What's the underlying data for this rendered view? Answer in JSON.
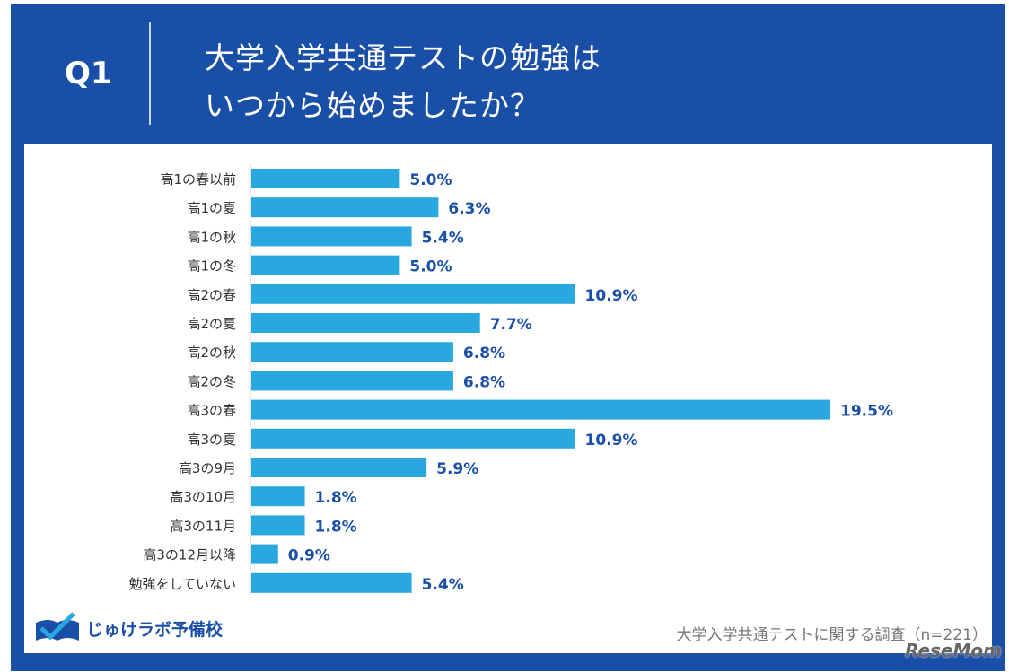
{
  "header": {
    "question": "Q1",
    "title_line1": "大学入学共通テストの勉強は",
    "title_line2": "いつから始めましたか？"
  },
  "colors": {
    "frame": "#1a4fa8",
    "bar": "#29a8e0",
    "value_label": "#1a4fa8"
  },
  "chart_data": {
    "type": "bar",
    "orientation": "horizontal",
    "categories": [
      "高1の春以前",
      "高1の夏",
      "高1の秋",
      "高1の冬",
      "高2の春",
      "高2の夏",
      "高2の秋",
      "高2の冬",
      "高3の春",
      "高3の夏",
      "高3の9月",
      "高3の10月",
      "高3の11月",
      "高3の12月以降",
      "勉強をしていない"
    ],
    "values": [
      5.0,
      6.3,
      5.4,
      5.0,
      10.9,
      7.7,
      6.8,
      6.8,
      19.5,
      10.9,
      5.9,
      1.8,
      1.8,
      0.9,
      5.4
    ],
    "value_labels": [
      "5.0%",
      "6.3%",
      "5.4%",
      "5.0%",
      "10.9%",
      "7.7%",
      "6.8%",
      "6.8%",
      "19.5%",
      "10.9%",
      "5.9%",
      "1.8%",
      "1.8%",
      "0.9%",
      "5.4%"
    ],
    "grid": false
  },
  "footer": {
    "logo_text": "じゅけラボ予備校",
    "source": "大学入学共通テストに関する調査（n=221）",
    "watermark": "ReseMom"
  }
}
